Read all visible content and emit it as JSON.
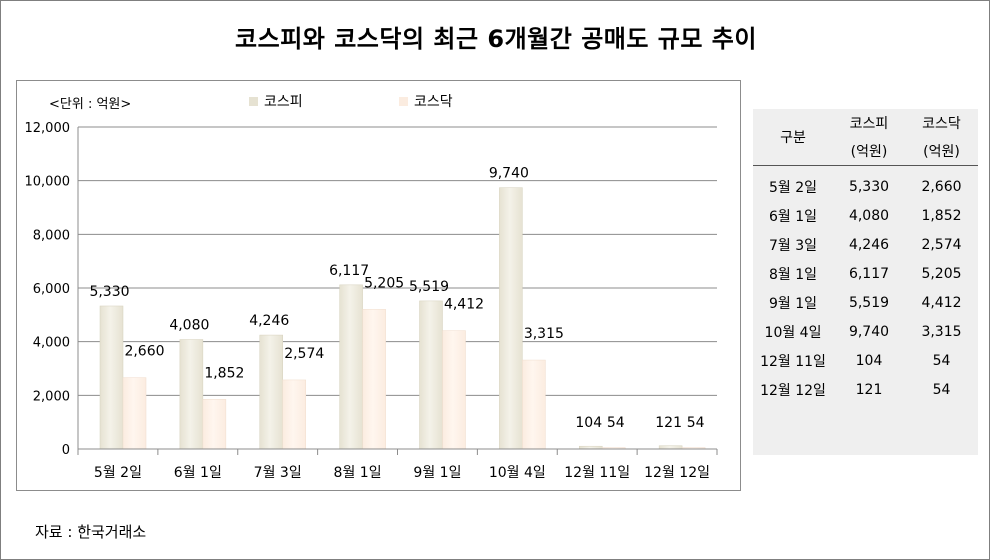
{
  "title": "코스피와 코스닥의 최근 6개월간 공매도 규모 추이",
  "unit_label": "<단위 : 억원>",
  "source": "자료 : 한국거래소",
  "colors": {
    "kospi": "#e6e2d2",
    "kosdaq": "#fbece0",
    "grid": "#8c8c8c",
    "axis": "#8c8c8c",
    "table_bg": "#efefef"
  },
  "chart_data": {
    "type": "bar",
    "categories": [
      "5월 2일",
      "6월 1일",
      "7월 3일",
      "8월 1일",
      "9월 1일",
      "10월 4일",
      "12월 11일",
      "12월 12일"
    ],
    "series": [
      {
        "name": "코스피",
        "values": [
          5330,
          4080,
          4246,
          6117,
          5519,
          9740,
          104,
          121
        ],
        "labels": [
          "5,330",
          "4,080",
          "4,246",
          "6,117",
          "5,519",
          "9,740",
          "104",
          "121"
        ]
      },
      {
        "name": "코스닥",
        "values": [
          2660,
          1852,
          2574,
          5205,
          4412,
          3315,
          54,
          54
        ],
        "labels": [
          "2,660",
          "1,852",
          "2,574",
          "5,205",
          "4,412",
          "3,315",
          "54",
          "54"
        ]
      }
    ],
    "ylim": [
      0,
      12000
    ],
    "yticks": [
      0,
      2000,
      4000,
      6000,
      8000,
      10000,
      12000
    ],
    "ytick_labels": [
      "0",
      "2,000",
      "4,000",
      "6,000",
      "8,000",
      "10,000",
      "12,000"
    ],
    "grid": true,
    "legend_position": "top"
  },
  "table": {
    "headers": [
      {
        "line1": "구분",
        "line2": ""
      },
      {
        "line1": "코스피",
        "line2": "(억원)"
      },
      {
        "line1": "코스닥",
        "line2": "(억원)"
      }
    ],
    "rows": [
      [
        "5월 2일",
        "5,330",
        "2,660"
      ],
      [
        "6월 1일",
        "4,080",
        "1,852"
      ],
      [
        "7월 3일",
        "4,246",
        "2,574"
      ],
      [
        "8월 1일",
        "6,117",
        "5,205"
      ],
      [
        "9월 1일",
        "5,519",
        "4,412"
      ],
      [
        "10월 4일",
        "9,740",
        "3,315"
      ],
      [
        "12월 11일",
        "104",
        "54"
      ],
      [
        "12월 12일",
        "121",
        "54"
      ]
    ]
  }
}
